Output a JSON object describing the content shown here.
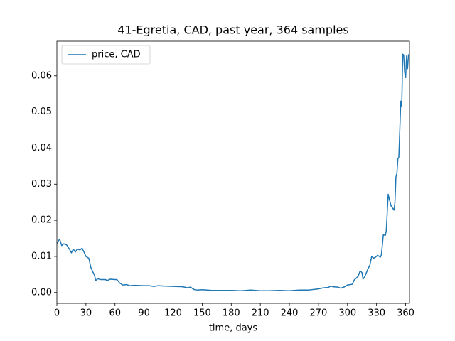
{
  "chart_data": {
    "type": "line",
    "title": "41-Egretia, CAD, past year, 364 samples",
    "x_label": "time, days",
    "xlim": [
      0,
      364
    ],
    "ylim": [
      -0.003,
      0.0696
    ],
    "xticks": [
      0,
      30,
      60,
      90,
      120,
      150,
      180,
      210,
      240,
      270,
      300,
      330,
      360
    ],
    "yticks": [
      {
        "value": 0,
        "label": "0.00"
      },
      0.01,
      0.02,
      0.03,
      0.04,
      0.05,
      0.06
    ],
    "legend": "upper left",
    "series": [
      {
        "name": "price, CAD",
        "color": "#1f77b4",
        "x": [
          0,
          2,
          3,
          5,
          7,
          10,
          13,
          15,
          17,
          19,
          21,
          24,
          26,
          28,
          30,
          33,
          35,
          37,
          39,
          40,
          42,
          45,
          50,
          52,
          55,
          60,
          62,
          65,
          68,
          72,
          75,
          80,
          90,
          95,
          100,
          105,
          110,
          120,
          130,
          135,
          138,
          140,
          142,
          145,
          150,
          160,
          170,
          180,
          190,
          200,
          210,
          220,
          230,
          240,
          250,
          260,
          270,
          275,
          280,
          283,
          285,
          290,
          293,
          297,
          300,
          303,
          305,
          307,
          309,
          311,
          313,
          315,
          316,
          318,
          321,
          323,
          325,
          327,
          329,
          331,
          334,
          335,
          337,
          339,
          340,
          342,
          343,
          345,
          347,
          348,
          349,
          350,
          351,
          352,
          353,
          354,
          355,
          356,
          357,
          358,
          359,
          360,
          361,
          362,
          363
        ],
        "values": [
          0.0135,
          0.0145,
          0.0147,
          0.013,
          0.0135,
          0.0132,
          0.012,
          0.011,
          0.012,
          0.0112,
          0.012,
          0.0118,
          0.0123,
          0.0112,
          0.01,
          0.0095,
          0.007,
          0.0058,
          0.0047,
          0.0033,
          0.0038,
          0.0036,
          0.0036,
          0.0033,
          0.0037,
          0.0036,
          0.0036,
          0.0026,
          0.0021,
          0.0022,
          0.0019,
          0.002,
          0.0019,
          0.0019,
          0.0017,
          0.0019,
          0.0018,
          0.0017,
          0.0016,
          0.0013,
          0.0015,
          0.0011,
          0.0008,
          0.0007,
          0.0008,
          0.0006,
          0.0006,
          0.0006,
          0.0005,
          0.0007,
          0.0005,
          0.0005,
          0.0006,
          0.0005,
          0.0007,
          0.0007,
          0.001,
          0.0013,
          0.0014,
          0.0018,
          0.0016,
          0.0015,
          0.0012,
          0.0016,
          0.0021,
          0.0022,
          0.0023,
          0.0035,
          0.004,
          0.0045,
          0.006,
          0.0055,
          0.0037,
          0.0045,
          0.0065,
          0.0075,
          0.01,
          0.0095,
          0.0098,
          0.0103,
          0.0098,
          0.0105,
          0.016,
          0.0158,
          0.017,
          0.0272,
          0.026,
          0.024,
          0.0232,
          0.0228,
          0.025,
          0.032,
          0.033,
          0.037,
          0.0375,
          0.045,
          0.053,
          0.0515,
          0.066,
          0.0658,
          0.061,
          0.0595,
          0.0655,
          0.062,
          0.066
        ]
      }
    ]
  }
}
